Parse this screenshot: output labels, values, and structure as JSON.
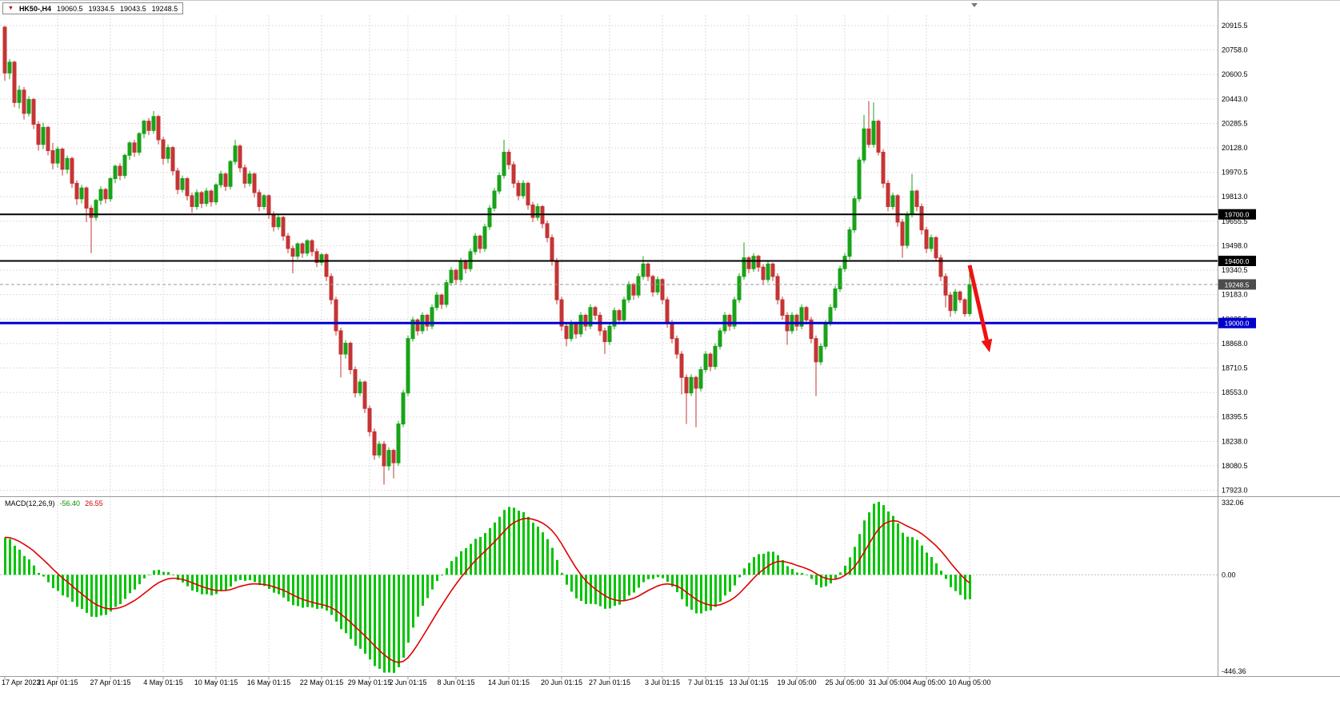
{
  "symbol_header": {
    "symbol": "HK50-,H4",
    "open": "19060.5",
    "high": "19334.5",
    "low": "19043.5",
    "close": "19248.5"
  },
  "chart_data": {
    "type": "candlestick",
    "instrument": "HK50-",
    "timeframe": "H4",
    "colors": {
      "up": "#18a318",
      "down": "#c53434",
      "histogram": "#00c400",
      "signal": "#e00000",
      "grid": "#dedede",
      "separator": "#9a9a9a",
      "blue_level": "#0000cd",
      "arrow": "#ee1111"
    },
    "price_axis": {
      "ticks": [
        20915.5,
        20758.0,
        20600.5,
        20443.0,
        20285.5,
        20128.0,
        19970.5,
        19813.0,
        19655.5,
        19498.0,
        19340.5,
        19183.0,
        19025.5,
        18868.0,
        18710.5,
        18553.0,
        18395.5,
        18238.0,
        18080.5,
        17923.0
      ]
    },
    "hlines": [
      {
        "price": 19700.0,
        "label": "19700.0",
        "color": "#000000",
        "width": 2,
        "badge": "#000000",
        "style": "solid"
      },
      {
        "price": 19400.0,
        "label": "19400.0",
        "color": "#000000",
        "width": 2,
        "badge": "#000000",
        "style": "solid"
      },
      {
        "price": 19248.5,
        "label": "19248.5",
        "color": "#9a9a9a",
        "width": 1,
        "badge": "#4d4d4d",
        "style": "dash"
      },
      {
        "price": 19000.0,
        "label": "19000.0",
        "color": "#0000cd",
        "width": 3,
        "badge": "#0000cd",
        "style": "solid"
      }
    ],
    "time_axis": {
      "ticks": [
        {
          "i": 0,
          "label": "17 Apr 2023"
        },
        {
          "i": 11,
          "label": "21 Apr 01:15"
        },
        {
          "i": 22,
          "label": "27 Apr 01:15"
        },
        {
          "i": 33,
          "label": "4 May 01:15"
        },
        {
          "i": 44,
          "label": "10 May 01:15"
        },
        {
          "i": 55,
          "label": "16 May 01:15"
        },
        {
          "i": 66,
          "label": "22 May 01:15"
        },
        {
          "i": 76,
          "label": "29 May 01:15"
        },
        {
          "i": 84,
          "label": "2 Jun 01:15"
        },
        {
          "i": 94,
          "label": "8 Jun 01:15"
        },
        {
          "i": 105,
          "label": "14 Jun 01:15"
        },
        {
          "i": 116,
          "label": "20 Jun 01:15"
        },
        {
          "i": 126,
          "label": "27 Jun 01:15"
        },
        {
          "i": 137,
          "label": "3 Jul 01:15"
        },
        {
          "i": 146,
          "label": "7 Jul 01:15"
        },
        {
          "i": 155,
          "label": "13 Jul 01:15"
        },
        {
          "i": 165,
          "label": "19 Jul 05:00"
        },
        {
          "i": 175,
          "label": "25 Jul 05:00"
        },
        {
          "i": 184,
          "label": "31 Jul 05:00"
        },
        {
          "i": 192,
          "label": "4 Aug 05:00"
        },
        {
          "i": 201,
          "label": "10 Aug 05:00"
        }
      ]
    },
    "candles": [
      [
        20905,
        20915,
        20560,
        20610
      ],
      [
        20610,
        20700,
        20570,
        20680
      ],
      [
        20680,
        20690,
        20390,
        20420
      ],
      [
        20420,
        20530,
        20380,
        20500
      ],
      [
        20500,
        20520,
        20310,
        20350
      ],
      [
        20350,
        20460,
        20330,
        20440
      ],
      [
        20440,
        20450,
        20250,
        20280
      ],
      [
        20280,
        20300,
        20110,
        20150
      ],
      [
        20150,
        20290,
        20120,
        20260
      ],
      [
        20260,
        20270,
        20080,
        20110
      ],
      [
        20110,
        20160,
        19990,
        20030
      ],
      [
        20030,
        20140,
        20000,
        20120
      ],
      [
        20120,
        20130,
        19950,
        19990
      ],
      [
        19990,
        20080,
        19960,
        20060
      ],
      [
        20060,
        20070,
        19870,
        19900
      ],
      [
        19900,
        19920,
        19760,
        19800
      ],
      [
        19800,
        19890,
        19770,
        19870
      ],
      [
        19870,
        19880,
        19650,
        19740
      ],
      [
        19740,
        19760,
        19450,
        19680
      ],
      [
        19680,
        19800,
        19660,
        19790
      ],
      [
        19790,
        19880,
        19760,
        19860
      ],
      [
        19860,
        19870,
        19770,
        19800
      ],
      [
        19800,
        19940,
        19780,
        19930
      ],
      [
        19930,
        20020,
        19900,
        20010
      ],
      [
        20010,
        20030,
        19920,
        19950
      ],
      [
        19950,
        20090,
        19930,
        20080
      ],
      [
        20080,
        20170,
        20050,
        20160
      ],
      [
        20160,
        20180,
        20070,
        20100
      ],
      [
        20100,
        20230,
        20080,
        20220
      ],
      [
        20220,
        20310,
        20190,
        20300
      ],
      [
        20300,
        20320,
        20210,
        20240
      ],
      [
        20240,
        20365,
        20220,
        20330
      ],
      [
        20330,
        20340,
        20150,
        20180
      ],
      [
        20180,
        20200,
        20020,
        20060
      ],
      [
        20060,
        20150,
        20030,
        20130
      ],
      [
        20130,
        20140,
        19950,
        19980
      ],
      [
        19980,
        20000,
        19830,
        19860
      ],
      [
        19860,
        19950,
        19840,
        19930
      ],
      [
        19930,
        19940,
        19790,
        19820
      ],
      [
        19820,
        19840,
        19710,
        19750
      ],
      [
        19750,
        19860,
        19730,
        19840
      ],
      [
        19840,
        19850,
        19740,
        19770
      ],
      [
        19770,
        19870,
        19750,
        19850
      ],
      [
        19850,
        19860,
        19750,
        19780
      ],
      [
        19780,
        19900,
        19760,
        19890
      ],
      [
        19890,
        19980,
        19870,
        19960
      ],
      [
        19960,
        19970,
        19850,
        19880
      ],
      [
        19880,
        20050,
        19860,
        20040
      ],
      [
        20040,
        20180,
        20020,
        20140
      ],
      [
        20140,
        20150,
        19970,
        20000
      ],
      [
        20000,
        20020,
        19870,
        19900
      ],
      [
        19900,
        19980,
        19880,
        19960
      ],
      [
        19960,
        19970,
        19810,
        19840
      ],
      [
        19840,
        19860,
        19720,
        19750
      ],
      [
        19750,
        19830,
        19730,
        19820
      ],
      [
        19820,
        19830,
        19670,
        19700
      ],
      [
        19700,
        19720,
        19590,
        19620
      ],
      [
        19620,
        19700,
        19600,
        19680
      ],
      [
        19680,
        19690,
        19530,
        19560
      ],
      [
        19560,
        19580,
        19450,
        19480
      ],
      [
        19480,
        19500,
        19320,
        19430
      ],
      [
        19430,
        19520,
        19410,
        19510
      ],
      [
        19510,
        19520,
        19420,
        19450
      ],
      [
        19450,
        19540,
        19430,
        19530
      ],
      [
        19530,
        19540,
        19430,
        19460
      ],
      [
        19460,
        19480,
        19360,
        19390
      ],
      [
        19390,
        19450,
        19370,
        19440
      ],
      [
        19440,
        19450,
        19270,
        19300
      ],
      [
        19300,
        19320,
        19120,
        19150
      ],
      [
        19150,
        19170,
        18920,
        18950
      ],
      [
        18950,
        18970,
        18650,
        18800
      ],
      [
        18800,
        18890,
        18770,
        18870
      ],
      [
        18870,
        18880,
        18670,
        18700
      ],
      [
        18700,
        18720,
        18520,
        18550
      ],
      [
        18550,
        18640,
        18530,
        18620
      ],
      [
        18620,
        18630,
        18420,
        18450
      ],
      [
        18450,
        18470,
        18270,
        18300
      ],
      [
        18300,
        18320,
        18120,
        18150
      ],
      [
        18150,
        18240,
        18130,
        18220
      ],
      [
        18220,
        18240,
        17960,
        18080
      ],
      [
        18080,
        18200,
        18050,
        18180
      ],
      [
        18180,
        18190,
        18000,
        18100
      ],
      [
        18100,
        18370,
        18080,
        18350
      ],
      [
        18350,
        18570,
        18330,
        18550
      ],
      [
        18550,
        18920,
        18530,
        18900
      ],
      [
        18900,
        19040,
        18880,
        19020
      ],
      [
        19020,
        19030,
        18920,
        18950
      ],
      [
        18950,
        19070,
        18930,
        19050
      ],
      [
        19050,
        19060,
        18950,
        18980
      ],
      [
        18980,
        19120,
        18960,
        19100
      ],
      [
        19100,
        19200,
        19080,
        19180
      ],
      [
        19180,
        19190,
        19090,
        19120
      ],
      [
        19120,
        19280,
        19100,
        19260
      ],
      [
        19260,
        19360,
        19240,
        19340
      ],
      [
        19340,
        19350,
        19250,
        19280
      ],
      [
        19280,
        19420,
        19260,
        19400
      ],
      [
        19400,
        19410,
        19320,
        19350
      ],
      [
        19350,
        19480,
        19330,
        19460
      ],
      [
        19460,
        19580,
        19440,
        19560
      ],
      [
        19560,
        19570,
        19450,
        19480
      ],
      [
        19480,
        19640,
        19460,
        19620
      ],
      [
        19620,
        19760,
        19600,
        19740
      ],
      [
        19740,
        19870,
        19720,
        19850
      ],
      [
        19850,
        19970,
        19830,
        19950
      ],
      [
        19950,
        20180,
        19930,
        20100
      ],
      [
        20100,
        20120,
        19990,
        20020
      ],
      [
        20020,
        20040,
        19870,
        19900
      ],
      [
        19900,
        19920,
        19790,
        19820
      ],
      [
        19820,
        19920,
        19800,
        19900
      ],
      [
        19900,
        19910,
        19730,
        19760
      ],
      [
        19760,
        19780,
        19650,
        19680
      ],
      [
        19680,
        19770,
        19660,
        19750
      ],
      [
        19750,
        19760,
        19610,
        19640
      ],
      [
        19640,
        19660,
        19520,
        19550
      ],
      [
        19550,
        19570,
        19370,
        19400
      ],
      [
        19400,
        19420,
        19120,
        19150
      ],
      [
        19150,
        19170,
        18950,
        18980
      ],
      [
        18980,
        19000,
        18850,
        18900
      ],
      [
        18900,
        19020,
        18880,
        19000
      ],
      [
        19000,
        19010,
        18900,
        18930
      ],
      [
        18930,
        19070,
        18910,
        19050
      ],
      [
        19050,
        19060,
        18950,
        18980
      ],
      [
        18980,
        19120,
        18960,
        19100
      ],
      [
        19100,
        19110,
        19020,
        19050
      ],
      [
        19050,
        19070,
        18920,
        18950
      ],
      [
        18950,
        18970,
        18800,
        18880
      ],
      [
        18880,
        19000,
        18860,
        18980
      ],
      [
        18980,
        19100,
        18960,
        19080
      ],
      [
        19080,
        19090,
        18990,
        19020
      ],
      [
        19020,
        19170,
        19000,
        19150
      ],
      [
        19150,
        19270,
        19130,
        19250
      ],
      [
        19250,
        19260,
        19150,
        19180
      ],
      [
        19180,
        19320,
        19160,
        19300
      ],
      [
        19300,
        19430,
        19280,
        19380
      ],
      [
        19380,
        19390,
        19270,
        19300
      ],
      [
        19300,
        19310,
        19170,
        19200
      ],
      [
        19200,
        19300,
        19180,
        19280
      ],
      [
        19280,
        19290,
        19120,
        19150
      ],
      [
        19150,
        19170,
        18970,
        19000
      ],
      [
        19000,
        19020,
        18870,
        18900
      ],
      [
        18900,
        18920,
        18770,
        18800
      ],
      [
        18800,
        18820,
        18540,
        18650
      ],
      [
        18650,
        18670,
        18350,
        18550
      ],
      [
        18550,
        18670,
        18530,
        18650
      ],
      [
        18650,
        18660,
        18330,
        18580
      ],
      [
        18580,
        18720,
        18560,
        18700
      ],
      [
        18700,
        18820,
        18680,
        18800
      ],
      [
        18800,
        18810,
        18690,
        18720
      ],
      [
        18720,
        18870,
        18700,
        18850
      ],
      [
        18850,
        18970,
        18830,
        18950
      ],
      [
        18950,
        19070,
        18930,
        19050
      ],
      [
        19050,
        19060,
        18950,
        18980
      ],
      [
        18980,
        19170,
        18960,
        19150
      ],
      [
        19150,
        19320,
        19130,
        19300
      ],
      [
        19300,
        19520,
        19280,
        19420
      ],
      [
        19420,
        19430,
        19320,
        19350
      ],
      [
        19350,
        19450,
        19330,
        19430
      ],
      [
        19430,
        19440,
        19330,
        19360
      ],
      [
        19360,
        19380,
        19250,
        19280
      ],
      [
        19280,
        19400,
        19260,
        19380
      ],
      [
        19380,
        19390,
        19270,
        19300
      ],
      [
        19300,
        19320,
        19120,
        19150
      ],
      [
        19150,
        19170,
        19020,
        19050
      ],
      [
        19050,
        19070,
        18860,
        18950
      ],
      [
        18950,
        19070,
        18930,
        19050
      ],
      [
        19050,
        19060,
        18950,
        18980
      ],
      [
        18980,
        19120,
        18960,
        19100
      ],
      [
        19100,
        19110,
        18990,
        19020
      ],
      [
        19020,
        19040,
        18870,
        18900
      ],
      [
        18900,
        18920,
        18530,
        18750
      ],
      [
        18750,
        18870,
        18730,
        18850
      ],
      [
        18850,
        19020,
        18830,
        19000
      ],
      [
        19000,
        19120,
        18980,
        19100
      ],
      [
        19100,
        19240,
        19080,
        19220
      ],
      [
        19220,
        19370,
        19200,
        19350
      ],
      [
        19350,
        19450,
        19330,
        19430
      ],
      [
        19430,
        19620,
        19410,
        19600
      ],
      [
        19600,
        19820,
        19580,
        19800
      ],
      [
        19800,
        20070,
        19780,
        20050
      ],
      [
        20050,
        20340,
        20030,
        20250
      ],
      [
        20250,
        20430,
        20130,
        20150
      ],
      [
        20150,
        20420,
        20130,
        20300
      ],
      [
        20300,
        20310,
        20080,
        20100
      ],
      [
        20100,
        20120,
        19870,
        19900
      ],
      [
        19900,
        19920,
        19720,
        19750
      ],
      [
        19750,
        19840,
        19730,
        19820
      ],
      [
        19820,
        19830,
        19620,
        19650
      ],
      [
        19650,
        19670,
        19420,
        19500
      ],
      [
        19500,
        19720,
        19480,
        19700
      ],
      [
        19700,
        19960,
        19680,
        19850
      ],
      [
        19850,
        19860,
        19720,
        19750
      ],
      [
        19750,
        19770,
        19570,
        19600
      ],
      [
        19600,
        19620,
        19450,
        19480
      ],
      [
        19480,
        19570,
        19460,
        19550
      ],
      [
        19550,
        19560,
        19400,
        19420
      ],
      [
        19420,
        19440,
        19270,
        19300
      ],
      [
        19300,
        19320,
        19100,
        19180
      ],
      [
        19180,
        19200,
        19040,
        19080
      ],
      [
        19080,
        19220,
        19060,
        19200
      ],
      [
        19200,
        19210,
        19130,
        19150
      ],
      [
        19150,
        19160,
        19040,
        19060
      ],
      [
        19060.5,
        19334.5,
        19043.5,
        19248.5
      ]
    ],
    "macd": {
      "label": "MACD(12,26,9)",
      "main_value": "-56.40",
      "signal_value": "26.55",
      "axis_labels": [
        {
          "value": 332.06,
          "label": "332.06"
        },
        {
          "value": 0,
          "label": "0.00"
        },
        {
          "value": -446.36,
          "label": "-446.36"
        }
      ],
      "range": [
        -446.36,
        332.06
      ]
    },
    "annotation_arrow": {
      "from": [
        1212,
        331
      ],
      "to": [
        1237,
        440
      ]
    }
  }
}
